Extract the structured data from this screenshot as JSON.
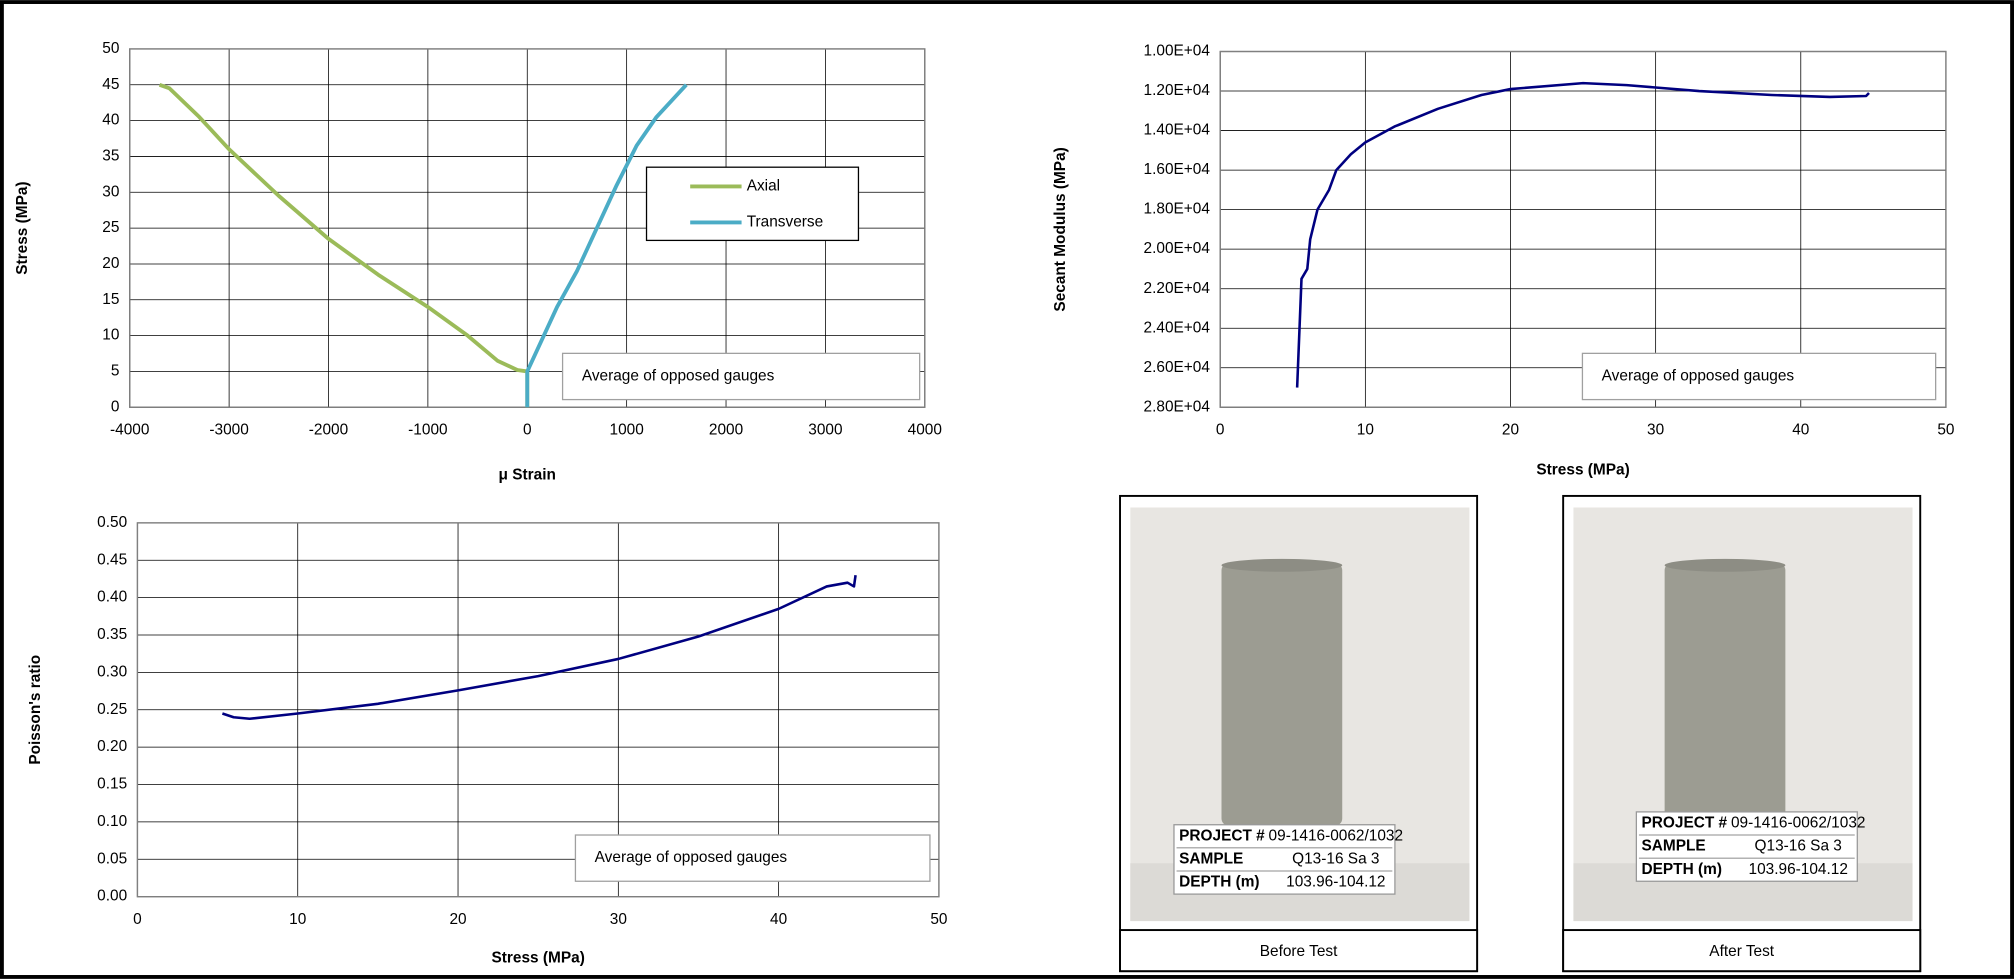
{
  "chart_data": [
    {
      "type": "line",
      "y_label": "Stress (MPa)",
      "x_label": "μ Strain",
      "xlim": [
        -4000,
        4000
      ],
      "xticks": [
        -4000,
        -3000,
        -2000,
        -1000,
        0,
        1000,
        2000,
        3000,
        4000
      ],
      "ylim": [
        0,
        50
      ],
      "yticks": [
        0,
        5,
        10,
        15,
        20,
        25,
        30,
        35,
        40,
        45,
        50
      ],
      "grid": true,
      "legend": "right",
      "annotation": "Average of opposed gauges",
      "series": [
        {
          "name": "Axial",
          "color": "#9bbb59",
          "x": [
            -3700,
            -3600,
            -3300,
            -3000,
            -2500,
            -2000,
            -1500,
            -1000,
            -600,
            -300,
            -100,
            0,
            0
          ],
          "values": [
            45,
            44.5,
            40.5,
            36,
            29.5,
            23.5,
            18.5,
            14,
            10,
            6.5,
            5.2,
            5,
            0
          ]
        },
        {
          "name": "Transverse",
          "color": "#4bacc6",
          "x": [
            0,
            0,
            100,
            300,
            500,
            700,
            900,
            1100,
            1300,
            1500,
            1600
          ],
          "values": [
            0,
            5,
            8,
            14,
            19,
            25,
            31,
            36.5,
            40.5,
            43.5,
            45
          ]
        }
      ]
    },
    {
      "type": "line",
      "y_label": "Secant Modulus (MPa)",
      "x_label": "Stress (MPa)",
      "xlim": [
        0,
        50
      ],
      "xticks": [
        0,
        10,
        20,
        30,
        40,
        50
      ],
      "ylim": [
        28000,
        10000
      ],
      "yticks": [
        {
          "value": 10000,
          "label": "1.00E+04"
        },
        {
          "value": 12000,
          "label": "1.20E+04"
        },
        {
          "value": 14000,
          "label": "1.40E+04"
        },
        {
          "value": 16000,
          "label": "1.60E+04"
        },
        {
          "value": 18000,
          "label": "1.80E+04"
        },
        {
          "value": 20000,
          "label": "2.00E+04"
        },
        {
          "value": 22000,
          "label": "2.20E+04"
        },
        {
          "value": 24000,
          "label": "2.40E+04"
        },
        {
          "value": 26000,
          "label": "2.60E+04"
        },
        {
          "value": 28000,
          "label": "2.80E+04"
        }
      ],
      "grid": true,
      "annotation": "Average of opposed gauges",
      "series": [
        {
          "color": "#000080",
          "x": [
            5.3,
            5.6,
            6,
            6.2,
            6.7,
            7.5,
            8,
            9,
            10,
            12,
            15,
            18,
            20,
            25,
            28,
            33,
            38,
            42,
            44.5,
            44.7
          ],
          "values": [
            27000,
            21500,
            21000,
            19500,
            18000,
            17000,
            16000,
            15200,
            14600,
            13800,
            12900,
            12200,
            11900,
            11600,
            11700,
            12000,
            12200,
            12300,
            12250,
            12100
          ]
        }
      ]
    },
    {
      "type": "line",
      "y_label": "Poisson's ratio",
      "x_label": "Stress (MPa)",
      "xlim": [
        0,
        50
      ],
      "xticks": [
        0,
        10,
        20,
        30,
        40,
        50
      ],
      "ylim": [
        0,
        0.5
      ],
      "yticks": [
        {
          "value": 0,
          "label": "0.00"
        },
        {
          "value": 0.05,
          "label": "0.05"
        },
        {
          "value": 0.1,
          "label": "0.10"
        },
        {
          "value": 0.15,
          "label": "0.15"
        },
        {
          "value": 0.2,
          "label": "0.20"
        },
        {
          "value": 0.25,
          "label": "0.25"
        },
        {
          "value": 0.3,
          "label": "0.30"
        },
        {
          "value": 0.35,
          "label": "0.35"
        },
        {
          "value": 0.4,
          "label": "0.40"
        },
        {
          "value": 0.45,
          "label": "0.45"
        },
        {
          "value": 0.5,
          "label": "0.50"
        }
      ],
      "grid": true,
      "annotation": "Average of opposed gauges",
      "series": [
        {
          "color": "#000080",
          "x": [
            5.3,
            6,
            7,
            10,
            15,
            20,
            25,
            30,
            35,
            40,
            43,
            44.3,
            44.7,
            44.8
          ],
          "values": [
            0.245,
            0.24,
            0.238,
            0.245,
            0.258,
            0.276,
            0.295,
            0.318,
            0.348,
            0.385,
            0.415,
            0.42,
            0.415,
            0.43
          ]
        }
      ]
    }
  ],
  "photos": [
    {
      "caption": "Before Test",
      "card": [
        [
          "PROJECT #",
          "09-1416-0062/1032"
        ],
        [
          "SAMPLE",
          "Q13-16 Sa 3"
        ],
        [
          "DEPTH (m)",
          "103.96-104.12"
        ]
      ]
    },
    {
      "caption": "After Test",
      "card": [
        [
          "PROJECT #",
          "09-1416-0062/1032"
        ],
        [
          "SAMPLE",
          "Q13-16 Sa 3"
        ],
        [
          "DEPTH (m)",
          "103.96-104.12"
        ]
      ]
    }
  ]
}
